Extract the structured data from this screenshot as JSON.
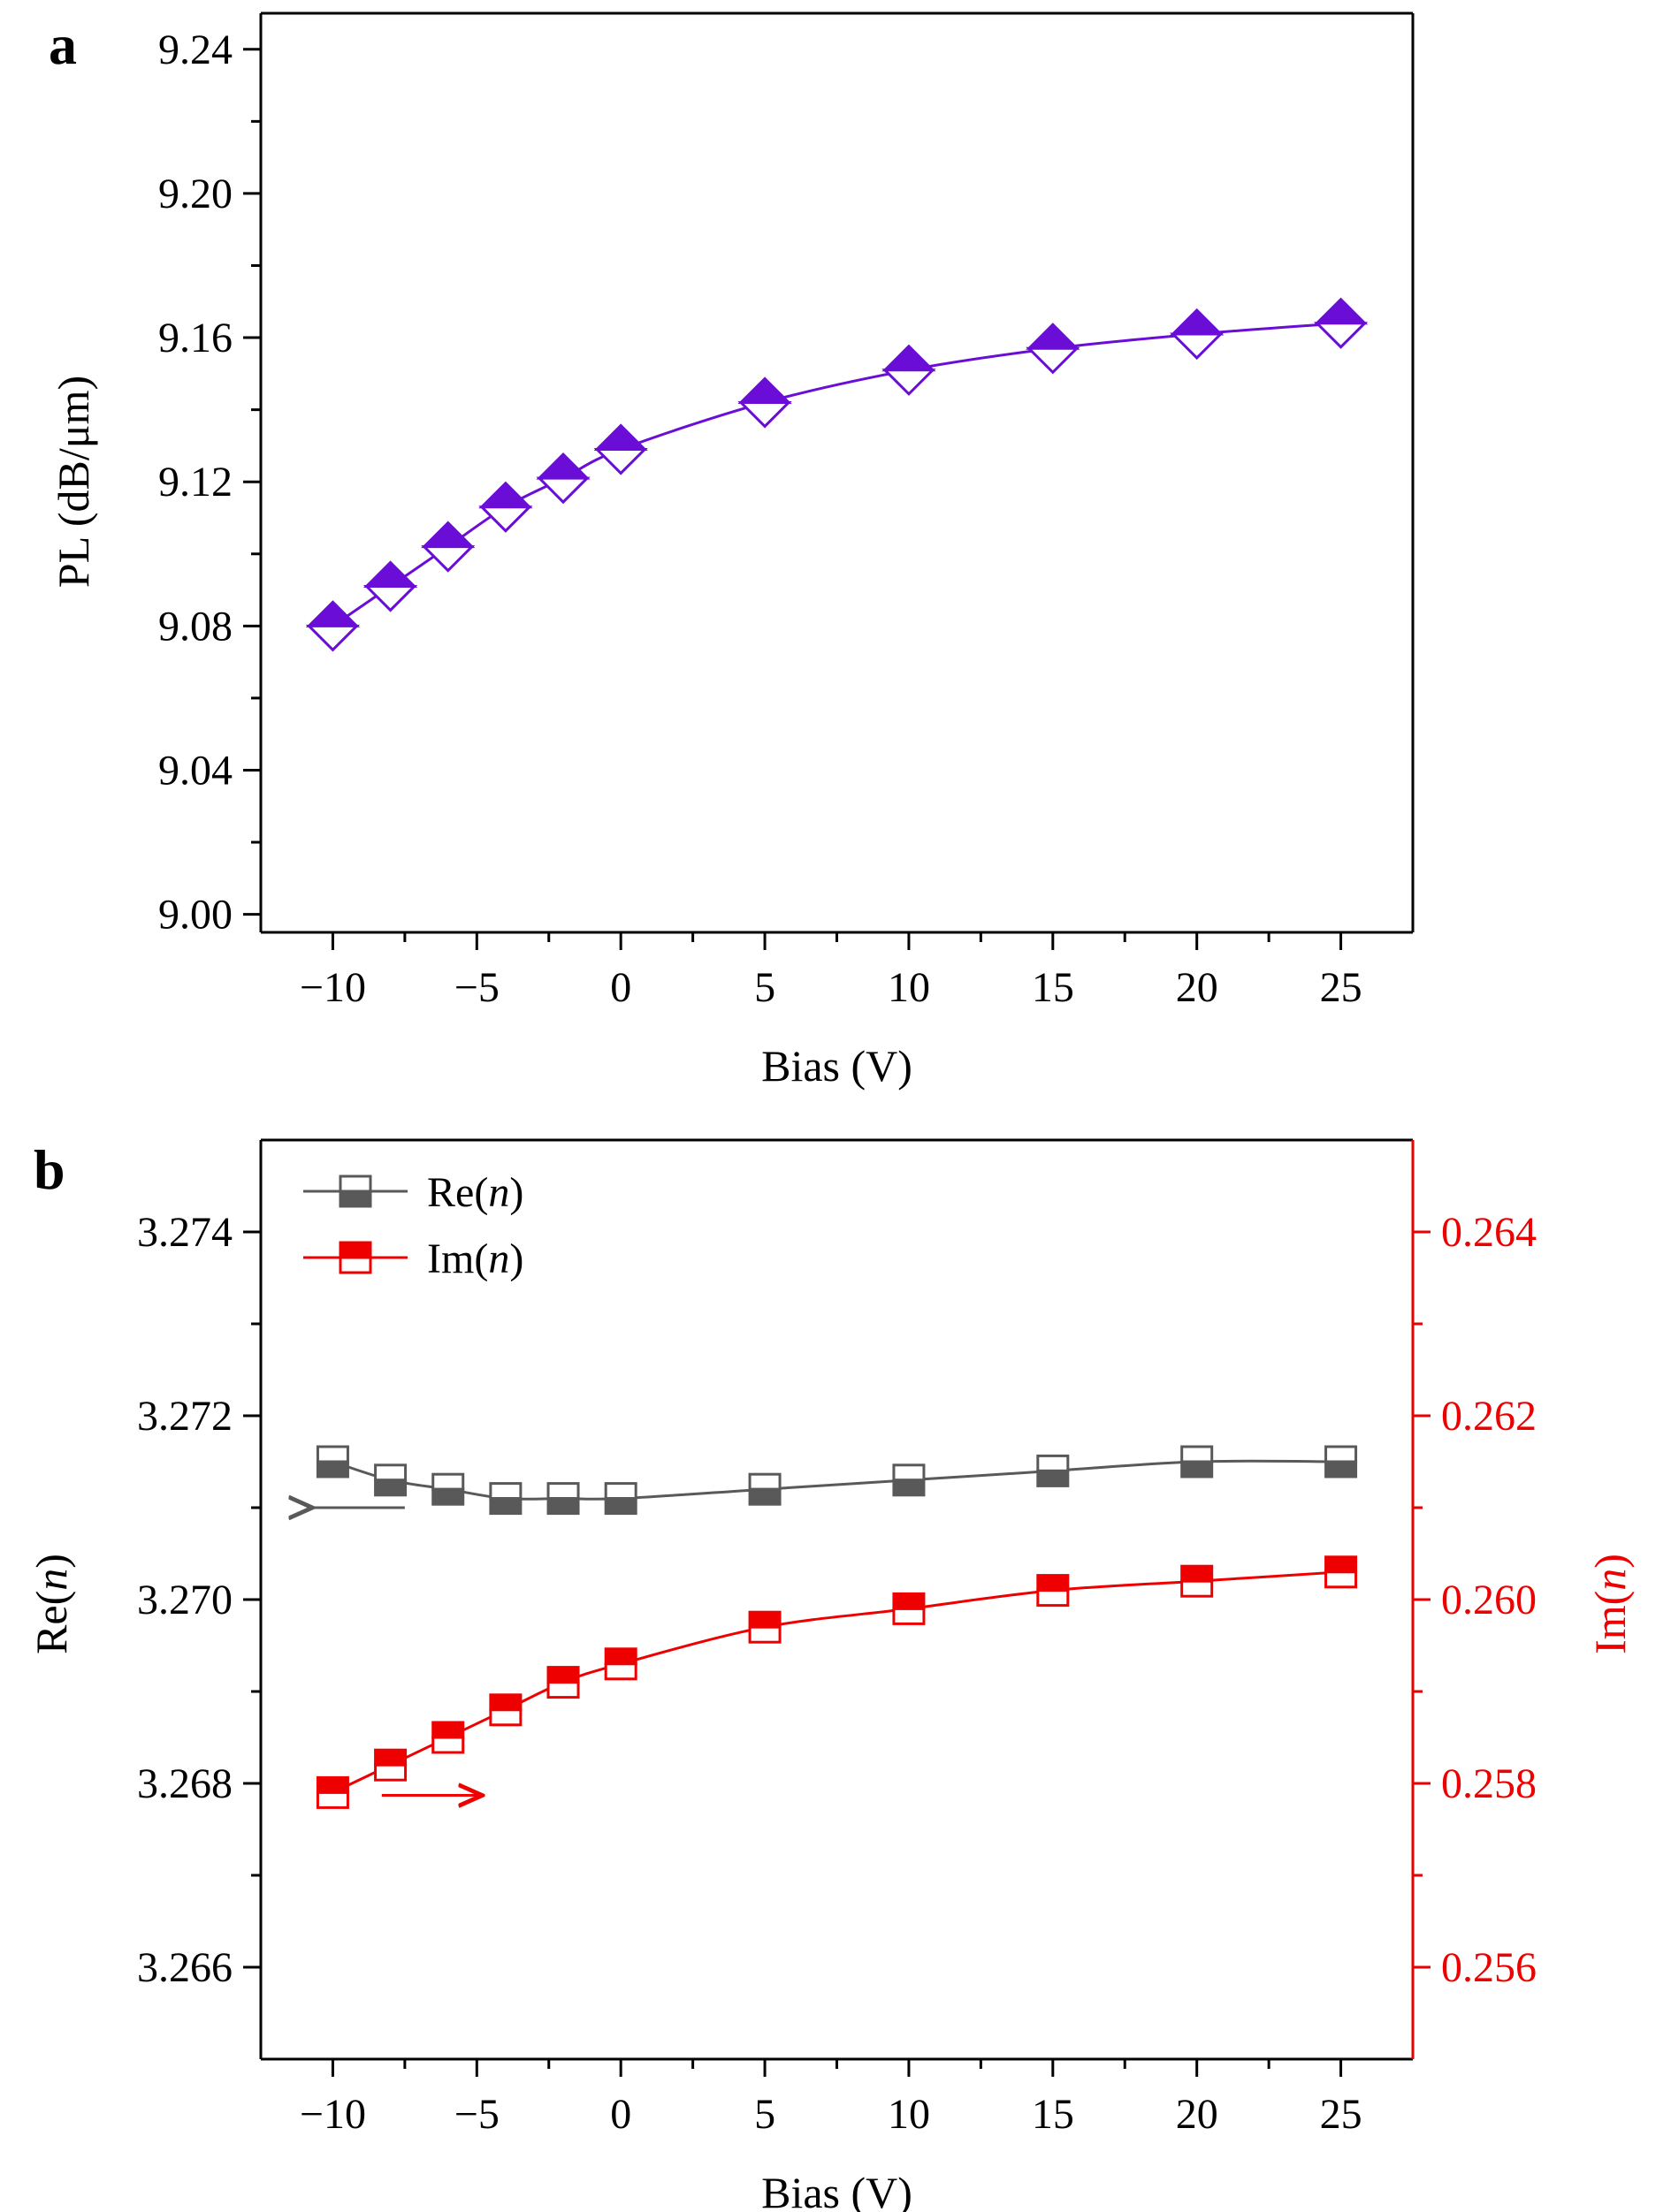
{
  "chart_data": [
    {
      "panel": "a",
      "type": "line",
      "xlabel": "Bias (V)",
      "ylabel": "PL (dB/μm)",
      "xlim": [
        -12.5,
        27.5
      ],
      "ylim": [
        8.995,
        9.25
      ],
      "x_ticks": [
        -10,
        -5,
        0,
        5,
        10,
        15,
        20,
        25
      ],
      "x_tick_labels": [
        "−10",
        "−5",
        "0",
        "5",
        "10",
        "15",
        "20",
        "25"
      ],
      "y_ticks": [
        9.0,
        9.04,
        9.08,
        9.12,
        9.16,
        9.2,
        9.24
      ],
      "y_tick_labels": [
        "9.00",
        "9.04",
        "9.08",
        "9.12",
        "9.16",
        "9.20",
        "9.24"
      ],
      "series": [
        {
          "color": "#6a0dd6",
          "marker": "diamond-half-filled",
          "x": [
            -10,
            -8,
            -6,
            -4,
            -2,
            0,
            5,
            10,
            15,
            20,
            25
          ],
          "y": [
            9.08,
            9.091,
            9.102,
            9.113,
            9.121,
            9.129,
            9.142,
            9.151,
            9.157,
            9.161,
            9.164
          ]
        }
      ]
    },
    {
      "panel": "b",
      "type": "line",
      "xlabel": "Bias (V)",
      "ylabel": "Re(n)",
      "ylabel_right": "Im(n)",
      "xlim": [
        -12.5,
        27.5
      ],
      "ylim": [
        3.265,
        3.275
      ],
      "ylim_right": [
        0.255,
        0.265
      ],
      "x_ticks": [
        -10,
        -5,
        0,
        5,
        10,
        15,
        20,
        25
      ],
      "x_tick_labels": [
        "−10",
        "−5",
        "0",
        "5",
        "10",
        "15",
        "20",
        "25"
      ],
      "y_ticks": [
        3.266,
        3.268,
        3.27,
        3.272,
        3.274
      ],
      "y_tick_labels": [
        "3.266",
        "3.268",
        "3.270",
        "3.272",
        "3.274"
      ],
      "y_ticks_right": [
        0.256,
        0.258,
        0.26,
        0.262,
        0.264
      ],
      "y_tick_labels_right": [
        "0.256",
        "0.258",
        "0.260",
        "0.262",
        "0.264"
      ],
      "legend_position": "top-left",
      "series": [
        {
          "name": "Re(n)",
          "axis": "left",
          "color": "#595959",
          "marker": "square-half-filled-bottom",
          "x": [
            -10,
            -8,
            -6,
            -4,
            -2,
            0,
            5,
            10,
            15,
            20,
            25
          ],
          "y": [
            3.2715,
            3.2713,
            3.2712,
            3.2711,
            3.2711,
            3.2711,
            3.2712,
            3.2713,
            3.2714,
            3.2715,
            3.2715
          ]
        },
        {
          "name": "Im(n)",
          "axis": "right",
          "color": "#ee0000",
          "marker": "square-half-filled-top",
          "x": [
            -10,
            -8,
            -6,
            -4,
            -2,
            0,
            5,
            10,
            15,
            20,
            25
          ],
          "y": [
            0.2579,
            0.2582,
            0.2585,
            0.2588,
            0.2591,
            0.2593,
            0.2597,
            0.2599,
            0.2601,
            0.2602,
            0.2603
          ]
        }
      ]
    }
  ]
}
